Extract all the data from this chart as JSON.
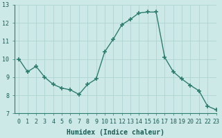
{
  "x": [
    0,
    1,
    2,
    3,
    4,
    5,
    6,
    7,
    8,
    9,
    10,
    11,
    12,
    13,
    14,
    15,
    16,
    17,
    18,
    19,
    20,
    21,
    22,
    23
  ],
  "y": [
    10.0,
    9.3,
    9.6,
    9.0,
    8.6,
    8.4,
    8.3,
    8.05,
    8.6,
    8.9,
    10.4,
    11.1,
    11.9,
    12.2,
    12.55,
    12.6,
    12.6,
    10.1,
    9.3,
    8.9,
    8.55,
    8.25,
    7.4,
    7.2
  ],
  "line_color": "#2d7d6e",
  "marker": "+",
  "marker_size": 4,
  "xlabel": "Humidex (Indice chaleur)",
  "ylim": [
    7,
    13
  ],
  "xlim": [
    -0.5,
    23
  ],
  "yticks": [
    7,
    8,
    9,
    10,
    11,
    12,
    13
  ],
  "xticks": [
    0,
    1,
    2,
    3,
    4,
    5,
    6,
    7,
    8,
    9,
    10,
    11,
    12,
    13,
    14,
    15,
    16,
    17,
    18,
    19,
    20,
    21,
    22,
    23
  ],
  "bg_color": "#cce9e7",
  "grid_color": "#aed4d1",
  "tick_fontsize": 6,
  "label_fontsize": 7,
  "marker_edge_width": 1.2,
  "line_width": 1.0
}
